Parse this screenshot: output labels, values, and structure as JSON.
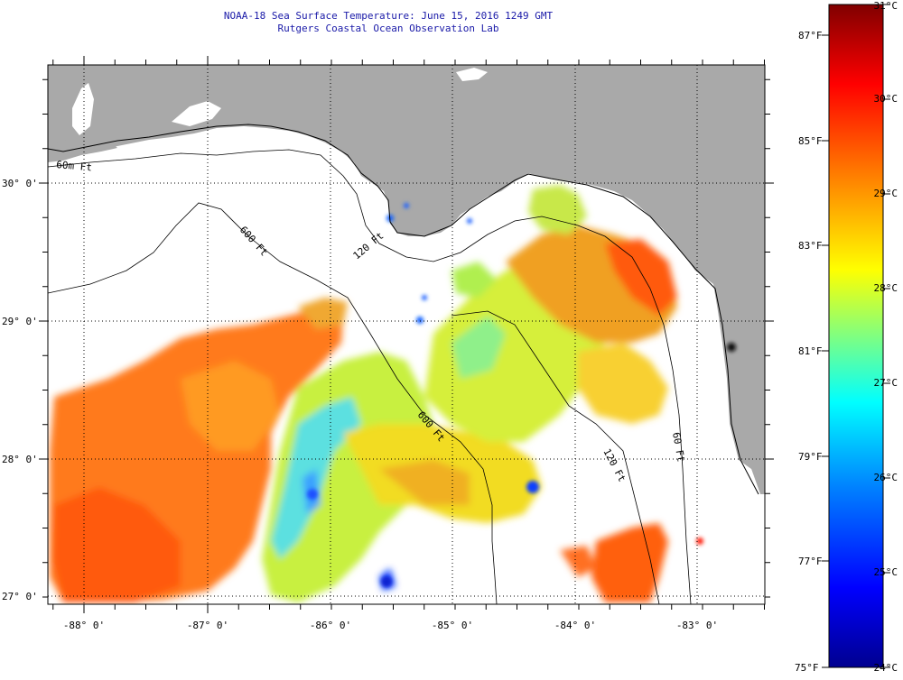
{
  "header": {
    "title": "NOAA-18 Sea Surface Temperature:  June 15, 2016 1249 GMT",
    "subtitle": "Rutgers Coastal Ocean Observation Lab"
  },
  "map": {
    "lat_labels": [
      "30° 0'",
      "29° 0'",
      "28° 0'",
      "27° 0'"
    ],
    "lon_labels": [
      "-88° 0'",
      "-87° 0'",
      "-86° 0'",
      "-85° 0'",
      "-84° 0'",
      "-83° 0'"
    ],
    "isobath_labels": [
      "60m Ft",
      "120 Ft",
      "600 Ft",
      "600 Ft",
      "120 Ft",
      "60 Ft"
    ],
    "land_color": "#a9a9a9",
    "no_data_color": "#ffffff"
  },
  "colorbar": {
    "top_celsius": "31°C",
    "bottom_celsius": "24°C",
    "bottom_fahrenheit": "75°F",
    "fahrenheit_ticks": [
      "87°F",
      "85°F",
      "83°F",
      "81°F",
      "79°F",
      "77°F"
    ],
    "celsius_ticks": [
      "30°C",
      "29°C",
      "28°C",
      "27°C",
      "26°C",
      "25°C"
    ],
    "colors": [
      "#00008f",
      "#0000ff",
      "#0080ff",
      "#00ffff",
      "#80ff80",
      "#ffff00",
      "#ff8000",
      "#ff0000",
      "#800000"
    ]
  }
}
